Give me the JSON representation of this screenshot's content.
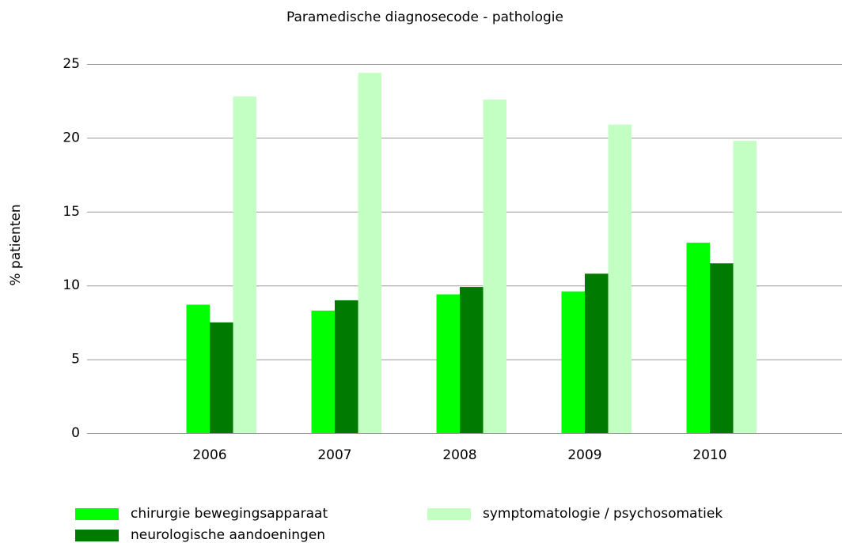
{
  "chart_data": {
    "type": "bar",
    "title": "Paramedische diagnosecode - pathologie",
    "y_label": "% patienten",
    "categories": [
      "2006",
      "2007",
      "2008",
      "2009",
      "2010"
    ],
    "series": [
      {
        "name": "chirurgie bewegingsapparaat",
        "color": "#00ff00",
        "values": [
          8.7,
          8.3,
          9.4,
          9.6,
          12.9
        ]
      },
      {
        "name": "neurologische aandoeningen",
        "color": "#007a00",
        "values": [
          7.5,
          9.0,
          9.9,
          10.8,
          11.5
        ]
      },
      {
        "name": "symptomatologie / psychosomatiek",
        "color": "#c3ffc3",
        "values": [
          22.8,
          24.4,
          22.6,
          20.9,
          19.8
        ]
      }
    ],
    "ylim": [
      0,
      25
    ],
    "yticks": [
      0,
      5,
      10,
      15,
      20,
      25
    ],
    "grid": true
  }
}
